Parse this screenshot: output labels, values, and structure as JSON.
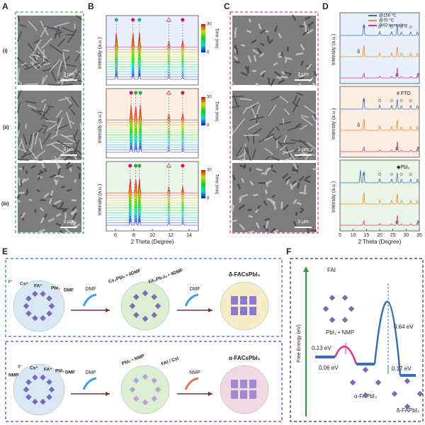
{
  "panels": {
    "A": {
      "label": "A",
      "rows": [
        "(i)",
        "(ii)",
        "(iii)"
      ],
      "scale_bar": "3 μm"
    },
    "B": {
      "label": "B",
      "y_label": "Intensity (a.u.)",
      "x_label": "2 Theta (Degree)",
      "xlim": [
        5,
        15
      ],
      "xticks": [
        6,
        8,
        10,
        12,
        14
      ],
      "colorbar": {
        "label": "Time (min)",
        "ticks": [
          0,
          30
        ]
      }
    },
    "C": {
      "label": "C",
      "scale_bar": "3 μm"
    },
    "D": {
      "label": "D",
      "y_label": "Intensity (a.u.)",
      "x_label": "2 Theta (Degree)",
      "xlim": [
        5,
        35
      ],
      "xticks": [
        5,
        10,
        15,
        20,
        25,
        30,
        35
      ],
      "legend": [
        {
          "name": "@150 °C",
          "color": "#3a6fb5"
        },
        {
          "name": "@70 °C",
          "color": "#f08a2c"
        },
        {
          "name": "W/O annealing",
          "color": "#d6338a"
        }
      ],
      "markers": {
        "fto": "#",
        "delta": "δ"
      },
      "notes": [
        "# FTO",
        "◆PbI₂"
      ]
    },
    "E": {
      "label": "E",
      "top": {
        "ions": [
          "I⁻",
          "Cs⁺",
          "FA⁺",
          "PbI₂",
          "DMF"
        ],
        "loss_1": "DMF",
        "intermediate_1": "Cs₄PbI₆ • 4DMF",
        "intermediate_2": "FA₂Pb₃I₈ • 4DMF",
        "loss_2": "DMF",
        "product": "δ-FACsPbI₃"
      },
      "bottom": {
        "ions": [
          "NMP",
          "I⁻",
          "Cs⁺",
          "FA⁺",
          "PbI₂",
          "DMF"
        ],
        "loss_1": "DMF",
        "intermediate": "PbI₂ • NMP",
        "reagent": "FAI / CsI",
        "loss_2": "NMP",
        "product": "α-FACsPbI₃"
      }
    },
    "F": {
      "label": "F",
      "y_label": "Free Energy (eV)",
      "reactant": "FAI",
      "complex": "PbI₂ • NMP",
      "barriers": [
        "0.13 eV",
        "0.06 eV",
        "0.64 eV",
        "0.17 eV"
      ],
      "alpha": "α-FAPbI₃",
      "delta": "δ-FAPbI₃"
    }
  }
}
